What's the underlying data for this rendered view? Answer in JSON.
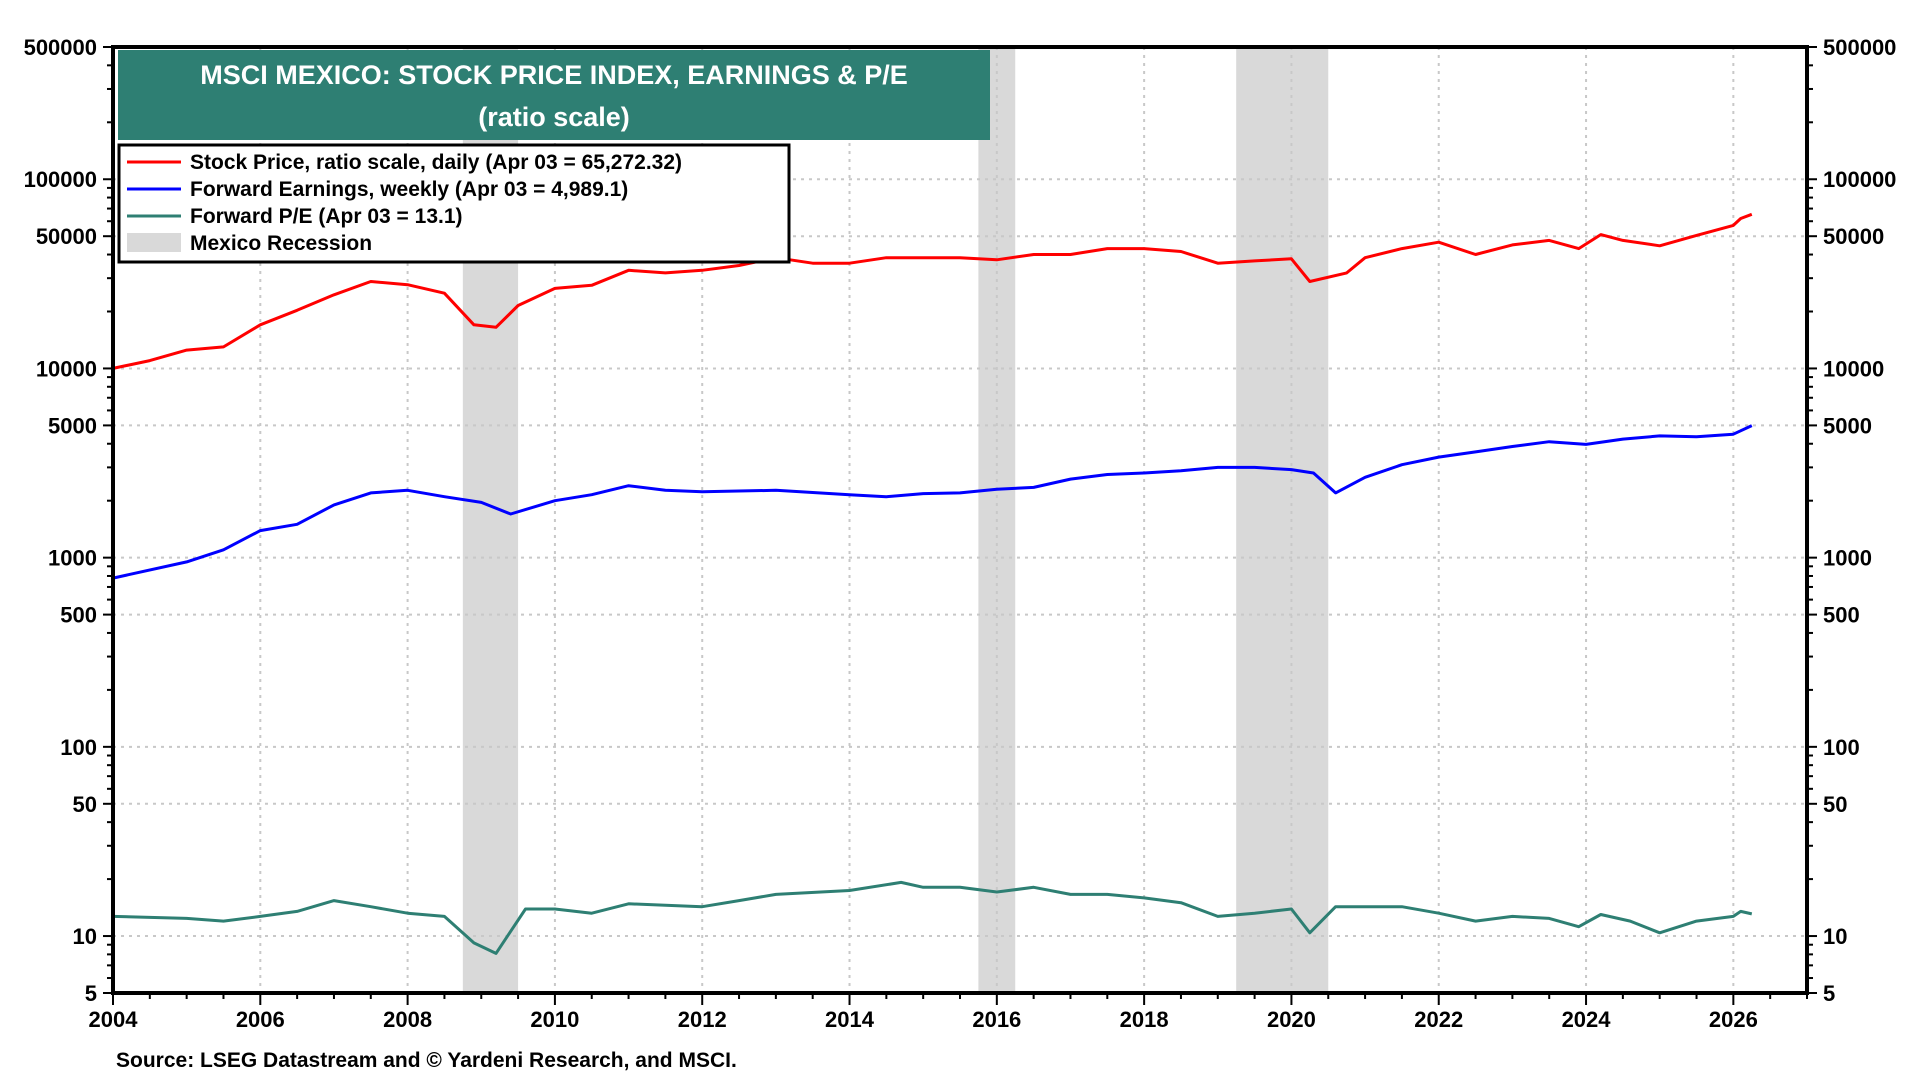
{
  "chart_data": {
    "type": "line",
    "title": "MSCI MEXICO: STOCK PRICE INDEX, EARNINGS & P/E",
    "subtitle": "(ratio scale)",
    "source": "Source: LSEG Datastream and © Yardeni Research, and MSCI.",
    "y_scale": "log",
    "ylim": [
      5,
      500000
    ],
    "xlim": [
      2004,
      2027
    ],
    "grid": true,
    "legend_placement": "top-left",
    "y_ticks": [
      500000,
      100000,
      50000,
      10000,
      5000,
      1000,
      500,
      100,
      50,
      10,
      5
    ],
    "y_tick_labels": [
      "500000",
      "100000",
      "50000",
      "10000",
      "5000",
      "1000",
      "500",
      "100",
      "50",
      "10",
      "5"
    ],
    "x_ticks": [
      2004,
      2006,
      2008,
      2010,
      2012,
      2014,
      2016,
      2018,
      2020,
      2022,
      2024,
      2026
    ],
    "x_tick_labels": [
      "2004",
      "2006",
      "2008",
      "2010",
      "2012",
      "2014",
      "2016",
      "2018",
      "2020",
      "2022",
      "2024",
      "2026"
    ],
    "recessions": [
      {
        "name": "Mexico Recession",
        "start": 2008.75,
        "end": 2009.5
      },
      {
        "name": "Mexico Recession",
        "start": 2015.75,
        "end": 2016.25
      },
      {
        "name": "Mexico Recession",
        "start": 2019.25,
        "end": 2020.5
      }
    ],
    "recession_label": "Mexico Recession",
    "recession_color": "#d9d9d9",
    "series": [
      {
        "name": "Stock Price, ratio scale, daily (Apr 03 = 65,272.32)",
        "color": "#ff0000",
        "x": [
          2004,
          2004.5,
          2005,
          2005.5,
          2006,
          2006.5,
          2007,
          2007.5,
          2008,
          2008.5,
          2008.9,
          2009.2,
          2009.5,
          2010,
          2010.5,
          2011,
          2011.5,
          2012,
          2012.5,
          2013,
          2013.5,
          2014,
          2014.5,
          2015,
          2015.5,
          2016,
          2016.5,
          2017,
          2017.5,
          2018,
          2018.5,
          2019,
          2019.5,
          2020,
          2020.25,
          2020.75,
          2021,
          2021.5,
          2022,
          2022.5,
          2023,
          2023.5,
          2023.9,
          2024.2,
          2024.5,
          2025,
          2025.5,
          2026,
          2026.1,
          2026.25
        ],
        "y": [
          10000,
          11000,
          12500,
          13000,
          17000,
          20300,
          24500,
          28800,
          27700,
          25000,
          17000,
          16500,
          21500,
          26500,
          27500,
          33000,
          32000,
          33000,
          35000,
          38500,
          36000,
          36000,
          38500,
          38500,
          38500,
          37500,
          40000,
          40000,
          43000,
          43000,
          41500,
          36000,
          37000,
          38000,
          28800,
          32000,
          38500,
          43000,
          46500,
          40000,
          45000,
          47500,
          43000,
          51000,
          47500,
          44500,
          50500,
          57000,
          62000,
          65272.32
        ]
      },
      {
        "name": "Forward Earnings, weekly (Apr 03 = 4,989.1)",
        "color": "#0000ff",
        "x": [
          2004,
          2005,
          2005.5,
          2006,
          2006.5,
          2007,
          2007.5,
          2008,
          2008.5,
          2009,
          2009.4,
          2010,
          2010.5,
          2011,
          2011.5,
          2012,
          2013,
          2014,
          2014.5,
          2015,
          2015.5,
          2016,
          2016.5,
          2017,
          2017.5,
          2018,
          2018.5,
          2019,
          2019.5,
          2020,
          2020.3,
          2020.6,
          2021,
          2021.5,
          2022,
          2022.5,
          2023,
          2023.5,
          2024,
          2024.5,
          2025,
          2025.5,
          2026,
          2026.25
        ],
        "y": [
          780,
          950,
          1100,
          1390,
          1500,
          1900,
          2200,
          2270,
          2100,
          1960,
          1700,
          2000,
          2150,
          2400,
          2270,
          2230,
          2270,
          2150,
          2100,
          2180,
          2200,
          2300,
          2350,
          2600,
          2750,
          2800,
          2880,
          3000,
          3000,
          2920,
          2800,
          2200,
          2660,
          3100,
          3400,
          3620,
          3870,
          4100,
          3970,
          4230,
          4400,
          4350,
          4490,
          4989.1
        ]
      },
      {
        "name": "Forward P/E (Apr 03 = 13.1)",
        "color": "#2e7f73",
        "x": [
          2004,
          2005,
          2005.5,
          2006,
          2006.5,
          2007,
          2007.5,
          2008,
          2008.5,
          2008.9,
          2009.2,
          2009.6,
          2010,
          2010.5,
          2011,
          2012,
          2012.5,
          2013,
          2014,
          2014.7,
          2015,
          2015.5,
          2016,
          2016.5,
          2017,
          2017.5,
          2018,
          2018.5,
          2019,
          2019.5,
          2020,
          2020.25,
          2020.6,
          2021,
          2021.5,
          2022,
          2022.5,
          2023,
          2023.5,
          2023.9,
          2024.2,
          2024.6,
          2025,
          2025.5,
          2026,
          2026.1,
          2026.25
        ],
        "y": [
          12.7,
          12.4,
          12.0,
          12.7,
          13.5,
          15.4,
          14.3,
          13.2,
          12.7,
          9.2,
          8.1,
          13.9,
          13.9,
          13.2,
          14.8,
          14.3,
          15.4,
          16.6,
          17.4,
          19.2,
          18.1,
          18.1,
          17.1,
          18.1,
          16.6,
          16.6,
          15.9,
          15.0,
          12.7,
          13.2,
          13.9,
          10.4,
          14.3,
          14.3,
          14.3,
          13.2,
          12.0,
          12.7,
          12.4,
          11.2,
          13.0,
          12.0,
          10.4,
          12.0,
          12.7,
          13.5,
          13.1
        ]
      }
    ]
  },
  "colors": {
    "title_bg": "#2e7f73",
    "grid": "#c8c8c8"
  }
}
